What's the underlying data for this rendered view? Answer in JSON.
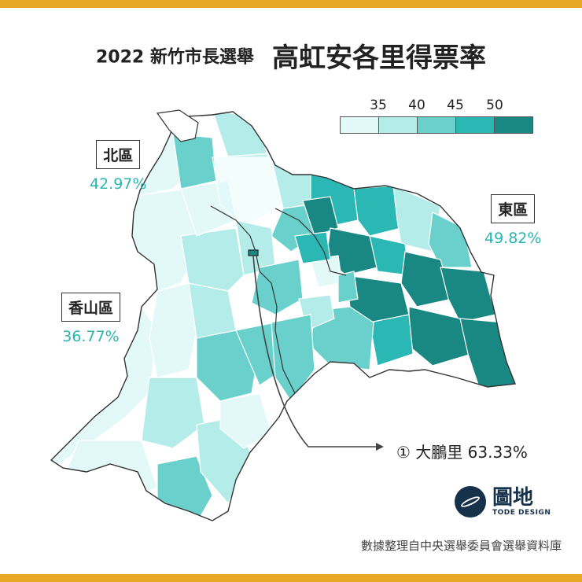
{
  "title": {
    "subtitle": "2022 新竹市長選舉",
    "main": "高虹安各里得票率"
  },
  "legend": {
    "ticks": [
      "35",
      "40",
      "45",
      "50"
    ],
    "colors": [
      "#e2f9f8",
      "#b4ecea",
      "#69d0cc",
      "#2bb7b3",
      "#1a8882"
    ]
  },
  "districts": {
    "north": {
      "name": "北區",
      "pct": "42.97%"
    },
    "east": {
      "name": "東區",
      "pct": "49.82%"
    },
    "xiangshan": {
      "name": "香山區",
      "pct": "36.77%"
    }
  },
  "callout": {
    "text": "① 大鵬里 63.33%"
  },
  "logo": {
    "name_cn": "圖地",
    "name_en": "TODE DESIGN"
  },
  "source": "數據整理自中央選舉委員會選舉資料庫",
  "colors": {
    "accent_bar": "#e8a824",
    "label_teal": "#2ab5b0",
    "boundary": "#ffffff",
    "outline": "#333333"
  }
}
